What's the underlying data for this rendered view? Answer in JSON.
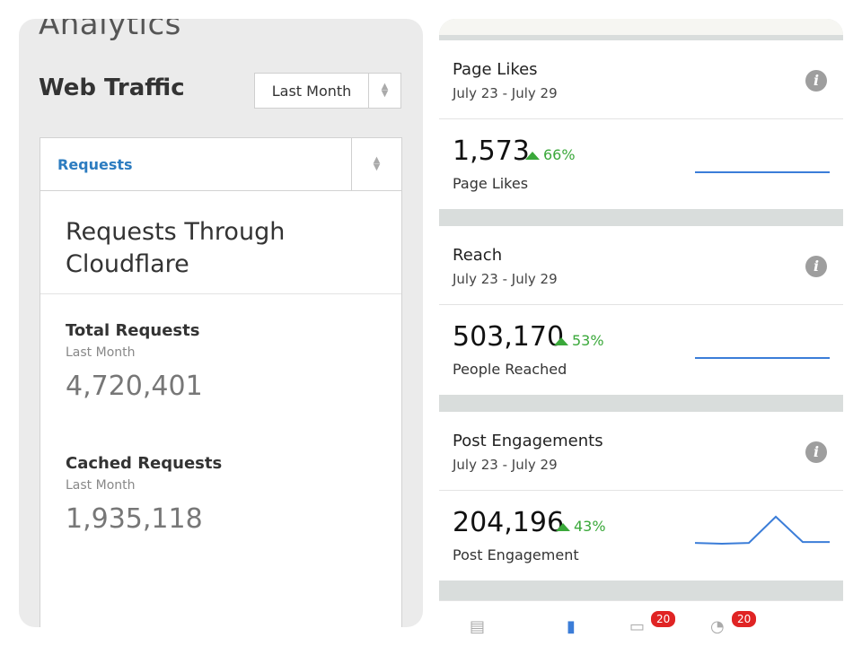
{
  "left": {
    "app_title": "Analytics",
    "section_title": "Web Traffic",
    "period_select": {
      "value": "Last Month"
    },
    "metric_select": {
      "value": "Requests"
    },
    "card_heading": "Requests Through Cloudflare",
    "stats": [
      {
        "label": "Total Requests",
        "sub": "Last Month",
        "value": "4,720,401"
      },
      {
        "label": "Cached Requests",
        "sub": "Last Month",
        "value": "1,935,118"
      }
    ]
  },
  "right": {
    "sections": [
      {
        "title": "Page Likes",
        "date_range": "July 23 - July 29",
        "value": "1,573",
        "change": "66%",
        "sub_label": "Page Likes",
        "trend": [
          1,
          1,
          1,
          1,
          1,
          1
        ]
      },
      {
        "title": "Reach",
        "date_range": "July 23 - July 29",
        "value": "503,170",
        "change": "53%",
        "sub_label": "People Reached",
        "trend": [
          1,
          1,
          1,
          1,
          1,
          1
        ]
      },
      {
        "title": "Post Engagements",
        "date_range": "July 23 - July 29",
        "value": "204,196",
        "change": "43%",
        "sub_label": "Post Engagement",
        "trend": [
          2,
          1,
          2,
          32,
          3,
          3
        ]
      }
    ],
    "bottom_tabs": [
      {
        "icon": "storefront-icon"
      },
      {
        "icon": "home-icon"
      },
      {
        "icon": "messages-icon",
        "badge": "20"
      },
      {
        "icon": "notifications-icon",
        "badge": "20"
      }
    ],
    "colors": {
      "accent_blue": "#3b7dd8",
      "positive_green": "#3aa83a",
      "badge_red": "#e02424"
    }
  }
}
